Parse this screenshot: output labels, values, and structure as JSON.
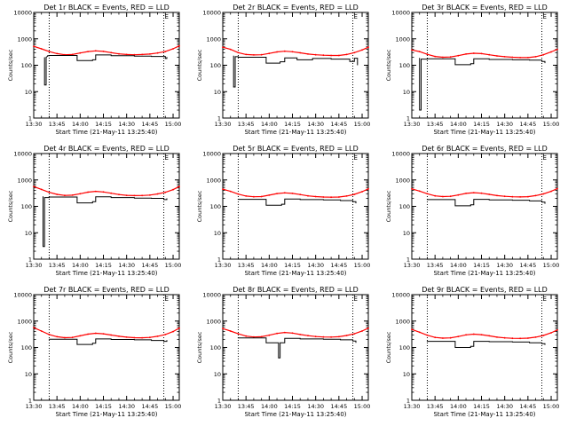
{
  "figure": {
    "ylabel": "Counts/sec",
    "xlabel": "Start Time (21-May-11 13:25:40)",
    "x_tick_labels": [
      "13:30",
      "13:45",
      "14:00",
      "14:15",
      "14:30",
      "14:45",
      "15:00"
    ],
    "y_tick_labels": [
      "1",
      "10",
      "100",
      "1000",
      "10000"
    ],
    "marker_label": "E",
    "colors": {
      "events": "#000000",
      "lld": "#ff0000",
      "axes": "#000000"
    }
  },
  "chart_data": [
    {
      "type": "line",
      "title": "Det 1r BLACK = Events, RED = LLD",
      "xlabel": "Start Time (21-May-11 13:25:40)",
      "ylabel": "Counts/sec",
      "x_unit": "minutes after 13:30",
      "xlim": [
        0,
        94
      ],
      "ylim": [
        1,
        10000
      ],
      "yscale": "log",
      "vlines": [
        10,
        84
      ],
      "series": [
        {
          "name": "LLD",
          "color": "#ff0000",
          "x": [
            0,
            5,
            10,
            15,
            20,
            25,
            30,
            35,
            40,
            45,
            50,
            55,
            60,
            65,
            70,
            75,
            80,
            85,
            90,
            94
          ],
          "y": [
            520,
            420,
            330,
            275,
            250,
            255,
            290,
            330,
            350,
            335,
            300,
            270,
            255,
            250,
            255,
            265,
            290,
            330,
            420,
            540
          ]
        },
        {
          "name": "Events",
          "color": "#000000",
          "x": [
            7,
            7,
            8,
            8,
            9,
            9,
            10,
            10,
            28,
            28,
            38,
            38,
            40,
            40,
            50,
            50,
            65,
            65,
            76,
            76,
            85,
            85,
            86,
            86
          ],
          "y": [
            200,
            18,
            18,
            200,
            220,
            230,
            230,
            235,
            235,
            150,
            150,
            160,
            160,
            245,
            245,
            230,
            230,
            220,
            220,
            215,
            215,
            180,
            180,
            205
          ]
        }
      ]
    },
    {
      "type": "line",
      "title": "Det 2r BLACK = Events, RED = LLD",
      "xlabel": "Start Time (21-May-11 13:25:40)",
      "ylabel": "Counts/sec",
      "x_unit": "minutes after 13:30",
      "xlim": [
        0,
        94
      ],
      "ylim": [
        1,
        10000
      ],
      "yscale": "log",
      "vlines": [
        10,
        84
      ],
      "series": [
        {
          "name": "LLD",
          "color": "#ff0000",
          "x": [
            0,
            5,
            10,
            15,
            20,
            25,
            30,
            35,
            40,
            45,
            50,
            55,
            60,
            65,
            70,
            75,
            80,
            85,
            90,
            94
          ],
          "y": [
            480,
            400,
            300,
            255,
            245,
            250,
            280,
            320,
            340,
            325,
            295,
            265,
            250,
            240,
            235,
            235,
            255,
            300,
            380,
            480
          ]
        },
        {
          "name": "Events",
          "color": "#000000",
          "x": [
            7,
            7,
            8,
            8,
            10,
            10,
            28,
            28,
            37,
            37,
            40,
            40,
            48,
            48,
            58,
            58,
            70,
            70,
            82,
            82,
            85,
            85,
            87,
            87
          ],
          "y": [
            230,
            15,
            15,
            210,
            210,
            200,
            200,
            120,
            120,
            135,
            135,
            190,
            190,
            160,
            160,
            180,
            180,
            170,
            170,
            140,
            140,
            185,
            185,
            100
          ]
        }
      ]
    },
    {
      "type": "line",
      "title": "Det 3r BLACK = Events, RED = LLD",
      "xlabel": "Start Time (21-May-11 13:25:40)",
      "ylabel": "Counts/sec",
      "x_unit": "minutes after 13:30",
      "xlim": [
        0,
        94
      ],
      "ylim": [
        1,
        10000
      ],
      "yscale": "log",
      "vlines": [
        10,
        84
      ],
      "series": [
        {
          "name": "LLD",
          "color": "#ff0000",
          "x": [
            0,
            5,
            10,
            15,
            20,
            25,
            30,
            35,
            40,
            45,
            50,
            55,
            60,
            65,
            70,
            75,
            80,
            85,
            90,
            94
          ],
          "y": [
            380,
            330,
            260,
            215,
            200,
            205,
            230,
            265,
            285,
            275,
            250,
            225,
            210,
            200,
            195,
            195,
            210,
            250,
            320,
            400
          ]
        },
        {
          "name": "Events",
          "color": "#000000",
          "x": [
            5,
            5,
            6,
            6,
            10,
            10,
            28,
            28,
            38,
            38,
            40,
            40,
            50,
            50,
            65,
            65,
            76,
            76,
            84,
            84,
            86,
            86
          ],
          "y": [
            190,
            2,
            2,
            170,
            170,
            175,
            175,
            105,
            105,
            115,
            115,
            175,
            175,
            165,
            165,
            160,
            160,
            155,
            155,
            140,
            140,
            120
          ]
        }
      ]
    },
    {
      "type": "line",
      "title": "Det 4r BLACK = Events, RED = LLD",
      "xlabel": "Start Time (21-May-11 13:25:40)",
      "ylabel": "Counts/sec",
      "x_unit": "minutes after 13:30",
      "xlim": [
        0,
        94
      ],
      "ylim": [
        1,
        10000
      ],
      "yscale": "log",
      "vlines": [
        10,
        84
      ],
      "series": [
        {
          "name": "LLD",
          "color": "#ff0000",
          "x": [
            0,
            5,
            10,
            15,
            20,
            25,
            30,
            35,
            40,
            45,
            50,
            55,
            60,
            65,
            70,
            75,
            80,
            85,
            90,
            94
          ],
          "y": [
            560,
            440,
            340,
            285,
            260,
            265,
            300,
            345,
            370,
            350,
            315,
            280,
            262,
            255,
            258,
            268,
            295,
            340,
            430,
            560
          ]
        },
        {
          "name": "Events",
          "color": "#000000",
          "x": [
            6,
            6,
            7,
            7,
            10,
            10,
            28,
            28,
            38,
            38,
            40,
            40,
            50,
            50,
            65,
            65,
            76,
            76,
            84,
            84,
            86,
            86
          ],
          "y": [
            240,
            3,
            3,
            215,
            215,
            225,
            225,
            135,
            135,
            150,
            150,
            230,
            230,
            215,
            215,
            205,
            205,
            200,
            200,
            180,
            180,
            200
          ]
        }
      ]
    },
    {
      "type": "line",
      "title": "Det 5r BLACK = Events, RED = LLD",
      "xlabel": "Start Time (21-May-11 13:25:40)",
      "ylabel": "Counts/sec",
      "x_unit": "minutes after 13:30",
      "xlim": [
        0,
        94
      ],
      "ylim": [
        1,
        10000
      ],
      "yscale": "log",
      "vlines": [
        10,
        84
      ],
      "series": [
        {
          "name": "LLD",
          "color": "#ff0000",
          "x": [
            0,
            5,
            10,
            15,
            20,
            25,
            30,
            35,
            40,
            45,
            50,
            55,
            60,
            65,
            70,
            75,
            80,
            85,
            90,
            94
          ],
          "y": [
            450,
            370,
            290,
            245,
            230,
            235,
            265,
            305,
            325,
            310,
            280,
            250,
            235,
            225,
            222,
            225,
            245,
            285,
            360,
            460
          ]
        },
        {
          "name": "Events",
          "color": "#000000",
          "x": [
            10,
            10,
            28,
            28,
            38,
            38,
            40,
            40,
            50,
            50,
            65,
            65,
            76,
            76,
            84,
            84,
            86,
            86
          ],
          "y": [
            190,
            185,
            185,
            110,
            110,
            120,
            120,
            190,
            190,
            180,
            180,
            175,
            175,
            165,
            165,
            150,
            150,
            130
          ]
        }
      ]
    },
    {
      "type": "line",
      "title": "Det 6r BLACK = Events, RED = LLD",
      "xlabel": "Start Time (21-May-11 13:25:40)",
      "ylabel": "Counts/sec",
      "x_unit": "minutes after 13:30",
      "xlim": [
        0,
        94
      ],
      "ylim": [
        1,
        10000
      ],
      "yscale": "log",
      "vlines": [
        10,
        84
      ],
      "series": [
        {
          "name": "LLD",
          "color": "#ff0000",
          "x": [
            0,
            5,
            10,
            15,
            20,
            25,
            30,
            35,
            40,
            45,
            50,
            55,
            60,
            65,
            70,
            75,
            80,
            85,
            90,
            94
          ],
          "y": [
            460,
            380,
            300,
            250,
            235,
            240,
            270,
            310,
            330,
            315,
            285,
            255,
            240,
            230,
            228,
            232,
            255,
            295,
            370,
            470
          ]
        },
        {
          "name": "Events",
          "color": "#000000",
          "x": [
            10,
            10,
            28,
            28,
            38,
            38,
            40,
            40,
            50,
            50,
            65,
            65,
            76,
            76,
            84,
            84,
            86,
            86
          ],
          "y": [
            185,
            180,
            180,
            105,
            105,
            115,
            115,
            185,
            185,
            175,
            175,
            170,
            170,
            160,
            160,
            145,
            145,
            125
          ]
        }
      ]
    },
    {
      "type": "line",
      "title": "Det 7r BLACK = Events, RED = LLD",
      "xlabel": "Start Time (21-May-11 13:25:40)",
      "ylabel": "Counts/sec",
      "x_unit": "minutes after 13:30",
      "xlim": [
        0,
        94
      ],
      "ylim": [
        1,
        10000
      ],
      "yscale": "log",
      "vlines": [
        10,
        84
      ],
      "series": [
        {
          "name": "LLD",
          "color": "#ff0000",
          "x": [
            0,
            5,
            10,
            15,
            20,
            25,
            30,
            35,
            40,
            45,
            50,
            55,
            60,
            65,
            70,
            75,
            80,
            85,
            90,
            94
          ],
          "y": [
            560,
            420,
            310,
            255,
            235,
            240,
            275,
            320,
            345,
            330,
            295,
            265,
            245,
            235,
            232,
            240,
            265,
            310,
            400,
            540
          ]
        },
        {
          "name": "Events",
          "color": "#000000",
          "x": [
            10,
            10,
            28,
            28,
            38,
            38,
            40,
            40,
            50,
            50,
            65,
            65,
            76,
            76,
            84,
            84,
            86,
            86
          ],
          "y": [
            210,
            205,
            205,
            130,
            130,
            145,
            145,
            210,
            210,
            200,
            200,
            195,
            195,
            185,
            185,
            170,
            170,
            190
          ]
        }
      ]
    },
    {
      "type": "line",
      "title": "Det 8r BLACK = Events, RED = LLD",
      "xlabel": "Start Time (21-May-11 13:25:40)",
      "ylabel": "Counts/sec",
      "x_unit": "minutes after 13:30",
      "xlim": [
        0,
        94
      ],
      "ylim": [
        1,
        10000
      ],
      "yscale": "log",
      "vlines": [
        10,
        84
      ],
      "series": [
        {
          "name": "LLD",
          "color": "#ff0000",
          "x": [
            0,
            5,
            10,
            15,
            20,
            25,
            30,
            35,
            40,
            45,
            50,
            55,
            60,
            65,
            70,
            75,
            80,
            85,
            90,
            94
          ],
          "y": [
            520,
            420,
            330,
            270,
            250,
            255,
            290,
            340,
            370,
            350,
            310,
            280,
            260,
            250,
            248,
            255,
            285,
            330,
            420,
            540
          ]
        },
        {
          "name": "Events",
          "color": "#000000",
          "x": [
            10,
            10,
            28,
            28,
            36,
            36,
            37,
            37,
            40,
            40,
            50,
            50,
            65,
            65,
            76,
            76,
            84,
            84,
            86,
            86
          ],
          "y": [
            240,
            230,
            230,
            150,
            150,
            40,
            40,
            150,
            150,
            220,
            220,
            210,
            210,
            205,
            205,
            195,
            195,
            175,
            175,
            150
          ]
        }
      ]
    },
    {
      "type": "line",
      "title": "Det 9r BLACK = Events, RED = LLD",
      "xlabel": "Start Time (21-May-11 13:25:40)",
      "ylabel": "Counts/sec",
      "x_unit": "minutes after 13:30",
      "xlim": [
        0,
        94
      ],
      "ylim": [
        1,
        10000
      ],
      "yscale": "log",
      "vlines": [
        10,
        84
      ],
      "series": [
        {
          "name": "LLD",
          "color": "#ff0000",
          "x": [
            0,
            5,
            10,
            15,
            20,
            25,
            30,
            35,
            40,
            45,
            50,
            55,
            60,
            65,
            70,
            75,
            80,
            85,
            90,
            94
          ],
          "y": [
            480,
            380,
            290,
            240,
            225,
            230,
            260,
            300,
            320,
            305,
            275,
            245,
            230,
            222,
            220,
            225,
            245,
            285,
            360,
            460
          ]
        },
        {
          "name": "Events",
          "color": "#000000",
          "x": [
            10,
            10,
            28,
            28,
            38,
            38,
            40,
            40,
            50,
            50,
            65,
            65,
            76,
            76,
            84,
            84,
            86,
            86
          ],
          "y": [
            175,
            170,
            170,
            100,
            100,
            110,
            110,
            170,
            170,
            165,
            165,
            160,
            160,
            150,
            150,
            140,
            140,
            125
          ]
        }
      ]
    }
  ]
}
